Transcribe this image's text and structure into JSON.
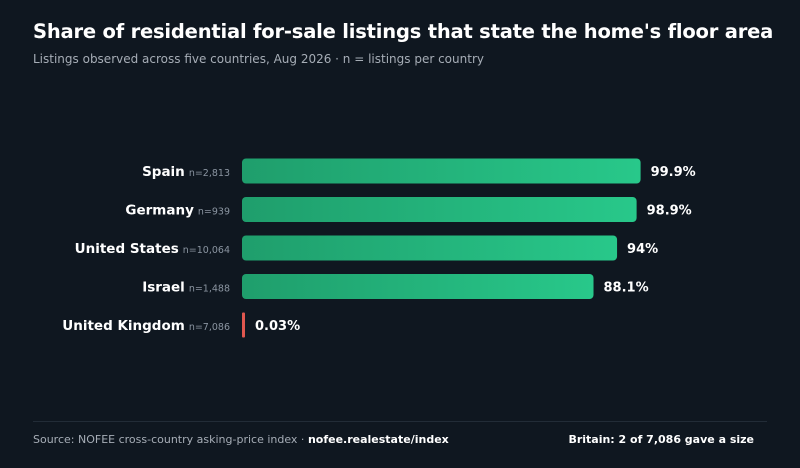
{
  "header": {
    "title": "Share of residential for-sale listings that state the home's floor area",
    "subtitle": "Listings observed across five countries, Aug 2026 · n = listings per country"
  },
  "footer": {
    "source_prefix": "Source: NOFEE cross-country asking-price index · ",
    "source_link": "nofee.realestate/index",
    "note": "Britain: 2 of 7,086 gave a size"
  },
  "colors": {
    "background": "#0f1720",
    "bar_gradient_start": "#1f9e6c",
    "bar_gradient_end": "#28c88a",
    "highlight_bar": "#e0574f",
    "label_text": "#ffffff",
    "muted_text": "#8b95a1"
  },
  "chart_data": {
    "type": "bar",
    "orientation": "horizontal",
    "categories": [
      "Spain",
      "Germany",
      "United States",
      "Israel",
      "United Kingdom"
    ],
    "sample_sizes": [
      "n=2,813",
      "n=939",
      "n=10,064",
      "n=1,488",
      "n=7,086"
    ],
    "values": [
      99.9,
      98.9,
      94,
      88.1,
      0.03
    ],
    "value_labels": [
      "99.9%",
      "98.9%",
      "94%",
      "88.1%",
      "0.03%"
    ],
    "xlim": [
      0,
      100
    ],
    "grid": false,
    "highlight_category": "United Kingdom",
    "xlabel": "",
    "ylabel": ""
  }
}
